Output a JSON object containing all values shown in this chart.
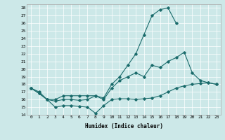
{
  "xlabel": "Humidex (Indice chaleur)",
  "xlim": [
    -0.5,
    23.5
  ],
  "ylim": [
    14,
    28.5
  ],
  "yticks": [
    14,
    15,
    16,
    17,
    18,
    19,
    20,
    21,
    22,
    23,
    24,
    25,
    26,
    27,
    28
  ],
  "xticks": [
    0,
    1,
    2,
    3,
    4,
    5,
    6,
    7,
    8,
    9,
    10,
    11,
    12,
    13,
    14,
    15,
    16,
    17,
    18,
    19,
    20,
    21,
    22,
    23
  ],
  "bg_color": "#cce8e8",
  "line_color": "#1a6b6b",
  "series": [
    {
      "x": [
        0,
        1,
        2,
        3,
        4,
        5,
        6,
        7,
        8,
        9,
        10,
        11,
        12,
        13,
        14,
        15,
        16,
        17,
        18,
        19,
        20,
        21,
        22,
        23
      ],
      "y": [
        17.5,
        17.0,
        16.0,
        15.0,
        15.2,
        15.2,
        15.1,
        15.0,
        14.2,
        15.2,
        16.0,
        16.1,
        16.1,
        16.0,
        16.1,
        16.2,
        16.5,
        17.0,
        17.5,
        17.8,
        18.0,
        18.1,
        18.2,
        18.0
      ]
    },
    {
      "x": [
        0,
        1,
        2,
        3,
        4,
        5,
        6,
        7,
        8,
        9,
        10,
        11,
        12,
        13,
        14,
        15,
        16,
        17,
        18,
        19,
        20,
        21,
        22,
        23
      ],
      "y": [
        17.5,
        16.8,
        16.0,
        15.8,
        16.0,
        16.0,
        15.9,
        16.0,
        16.5,
        16.0,
        17.5,
        18.5,
        19.0,
        19.5,
        19.0,
        20.5,
        20.2,
        21.0,
        21.5,
        22.2,
        19.5,
        18.5,
        18.2,
        18.0
      ]
    },
    {
      "x": [
        0,
        1,
        2,
        3,
        4,
        5,
        6,
        7,
        8,
        9,
        10,
        11,
        12,
        13,
        14,
        15,
        16,
        17,
        18
      ],
      "y": [
        17.5,
        16.8,
        16.0,
        16.0,
        16.5,
        16.5,
        16.5,
        16.5,
        16.5,
        16.2,
        18.0,
        19.0,
        20.5,
        22.0,
        24.5,
        27.0,
        27.8,
        28.0,
        26.0
      ]
    }
  ]
}
